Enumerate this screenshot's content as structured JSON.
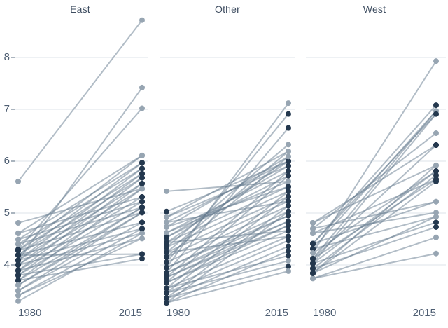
{
  "chart_data": {
    "type": "line",
    "subtype": "slopegraph",
    "title": "",
    "x_labels": [
      "1980",
      "2015"
    ],
    "y_ticks": [
      "8",
      "7",
      "6",
      "5",
      "4"
    ],
    "y_tick_values": [
      8,
      7,
      6,
      5,
      4
    ],
    "ylim": [
      3.2,
      8.9
    ],
    "grid": "horizontal-only",
    "legend": "none",
    "colors": {
      "dark_dot": "#24384e",
      "light_dot": "#97a5b2",
      "line": "#64798d",
      "gridline": "#dde3e8",
      "tick_dash": "#8593a3",
      "tick_text": "#4e5e72",
      "title_text": "#3e4d60"
    },
    "panels": [
      {
        "title": "East",
        "lines": [
          [
            5.61,
            8.72,
            "l",
            "l"
          ],
          [
            4.08,
            7.42,
            "d",
            "l"
          ],
          [
            4.3,
            7.02,
            "d",
            "l"
          ],
          [
            4.81,
            5.47,
            "l",
            "l"
          ],
          [
            4.61,
            6.11,
            "l",
            "l"
          ],
          [
            4.49,
            5.97,
            "l",
            "d"
          ],
          [
            4.4,
            5.86,
            "l",
            "d"
          ],
          [
            4.28,
            5.76,
            "d",
            "d"
          ],
          [
            4.19,
            5.68,
            "d",
            "d"
          ],
          [
            4.09,
            5.57,
            "d",
            "d"
          ],
          [
            4.0,
            5.47,
            "d",
            "l"
          ],
          [
            3.89,
            5.31,
            "d",
            "d"
          ],
          [
            3.8,
            5.22,
            "d",
            "d"
          ],
          [
            3.7,
            5.11,
            "d",
            "d"
          ],
          [
            3.61,
            5.01,
            "l",
            "d"
          ],
          [
            3.5,
            4.82,
            "l",
            "d"
          ],
          [
            3.41,
            4.7,
            "l",
            "d"
          ],
          [
            3.3,
            4.61,
            "l",
            "l"
          ],
          [
            4.61,
            5.31,
            "l",
            "d"
          ],
          [
            4.49,
            5.22,
            "l",
            "d"
          ],
          [
            4.4,
            5.11,
            "l",
            "d"
          ],
          [
            4.28,
            5.01,
            "d",
            "d"
          ],
          [
            4.19,
            4.82,
            "d",
            "d"
          ],
          [
            4.09,
            4.7,
            "d",
            "d"
          ],
          [
            4.0,
            4.61,
            "d",
            "l"
          ],
          [
            3.89,
            4.51,
            "d",
            "l"
          ],
          [
            3.8,
            4.21,
            "d",
            "d"
          ],
          [
            3.7,
            4.12,
            "d",
            "d"
          ],
          [
            4.28,
            6.11,
            "d",
            "l"
          ],
          [
            4.19,
            5.97,
            "d",
            "d"
          ],
          [
            4.09,
            5.86,
            "d",
            "d"
          ],
          [
            4.0,
            5.76,
            "d",
            "d"
          ],
          [
            3.89,
            5.68,
            "d",
            "d"
          ],
          [
            3.8,
            5.57,
            "d",
            "d"
          ],
          [
            3.7,
            5.47,
            "d",
            "l"
          ],
          [
            3.61,
            5.11,
            "l",
            "d"
          ],
          [
            3.5,
            5.01,
            "l",
            "d"
          ],
          [
            3.41,
            4.51,
            "l",
            "l"
          ],
          [
            4.19,
            4.21,
            "d",
            "d"
          ]
        ]
      },
      {
        "title": "Other",
        "lines": [
          [
            5.42,
            5.61,
            "l",
            "l"
          ],
          [
            5.03,
            6.0,
            "d",
            "d"
          ],
          [
            3.95,
            7.12,
            "d",
            "l"
          ],
          [
            4.05,
            6.91,
            "d",
            "d"
          ],
          [
            3.85,
            6.64,
            "d",
            "d"
          ],
          [
            4.34,
            6.32,
            "d",
            "l"
          ],
          [
            4.24,
            6.19,
            "d",
            "l"
          ],
          [
            4.15,
            6.09,
            "d",
            "l"
          ],
          [
            4.43,
            6.0,
            "d",
            "d"
          ],
          [
            4.53,
            5.91,
            "d",
            "d"
          ],
          [
            3.76,
            5.81,
            "d",
            "d"
          ],
          [
            3.66,
            5.72,
            "d",
            "d"
          ],
          [
            4.62,
            5.61,
            "l",
            "l"
          ],
          [
            4.73,
            5.51,
            "l",
            "d"
          ],
          [
            3.55,
            5.42,
            "d",
            "d"
          ],
          [
            3.46,
            5.32,
            "d",
            "d"
          ],
          [
            4.82,
            5.23,
            "l",
            "d"
          ],
          [
            3.36,
            5.14,
            "d",
            "d"
          ],
          [
            3.27,
            5.03,
            "d",
            "d"
          ],
          [
            3.95,
            4.95,
            "d",
            "d"
          ],
          [
            3.85,
            4.84,
            "d",
            "d"
          ],
          [
            3.76,
            4.76,
            "d",
            "d"
          ],
          [
            3.66,
            4.66,
            "d",
            "d"
          ],
          [
            3.55,
            4.55,
            "d",
            "d"
          ],
          [
            3.46,
            4.47,
            "d",
            "d"
          ],
          [
            3.36,
            4.36,
            "d",
            "d"
          ],
          [
            3.27,
            4.27,
            "d",
            "d"
          ],
          [
            3.55,
            4.18,
            "d",
            "d"
          ],
          [
            3.46,
            4.08,
            "d",
            "l"
          ],
          [
            3.36,
            3.97,
            "d",
            "d"
          ],
          [
            3.27,
            3.88,
            "d",
            "l"
          ],
          [
            4.92,
            5.91,
            "l",
            "d"
          ],
          [
            4.82,
            6.0,
            "l",
            "d"
          ],
          [
            4.73,
            6.09,
            "l",
            "l"
          ],
          [
            4.62,
            5.81,
            "l",
            "d"
          ],
          [
            4.53,
            5.72,
            "d",
            "d"
          ],
          [
            4.43,
            5.51,
            "d",
            "d"
          ],
          [
            4.34,
            5.42,
            "d",
            "d"
          ],
          [
            4.24,
            5.32,
            "d",
            "d"
          ],
          [
            4.15,
            5.23,
            "d",
            "d"
          ],
          [
            4.05,
            5.14,
            "d",
            "d"
          ],
          [
            3.95,
            5.03,
            "d",
            "d"
          ],
          [
            3.85,
            4.95,
            "d",
            "d"
          ],
          [
            3.76,
            4.84,
            "d",
            "d"
          ],
          [
            3.66,
            4.76,
            "d",
            "d"
          ],
          [
            4.43,
            4.66,
            "d",
            "d"
          ],
          [
            4.24,
            4.55,
            "d",
            "d"
          ],
          [
            4.92,
            6.19,
            "l",
            "l"
          ]
        ]
      },
      {
        "title": "West",
        "lines": [
          [
            4.23,
            7.93,
            "l",
            "l"
          ],
          [
            4.41,
            7.08,
            "d",
            "d"
          ],
          [
            4.31,
            6.97,
            "d",
            "l"
          ],
          [
            4.41,
            6.91,
            "d",
            "d"
          ],
          [
            4.7,
            6.54,
            "l",
            "l"
          ],
          [
            4.12,
            6.31,
            "d",
            "d"
          ],
          [
            4.81,
            5.92,
            "l",
            "l"
          ],
          [
            4.03,
            5.81,
            "d",
            "d"
          ],
          [
            3.93,
            5.73,
            "d",
            "d"
          ],
          [
            4.12,
            5.65,
            "d",
            "d"
          ],
          [
            3.84,
            5.61,
            "d",
            "d"
          ],
          [
            4.7,
            5.22,
            "l",
            "l"
          ],
          [
            4.61,
            5.01,
            "l",
            "l"
          ],
          [
            4.31,
            4.93,
            "d",
            "l"
          ],
          [
            4.03,
            4.82,
            "d",
            "d"
          ],
          [
            3.93,
            4.73,
            "d",
            "d"
          ],
          [
            3.74,
            4.53,
            "l",
            "l"
          ],
          [
            3.74,
            4.22,
            "l",
            "l"
          ],
          [
            4.12,
            6.97,
            "d",
            "l"
          ],
          [
            4.03,
            6.91,
            "d",
            "d"
          ],
          [
            3.84,
            5.92,
            "d",
            "l"
          ],
          [
            4.23,
            5.81,
            "l",
            "d"
          ],
          [
            4.41,
            5.22,
            "d",
            "l"
          ],
          [
            4.81,
            6.31,
            "l",
            "d"
          ],
          [
            3.84,
            4.93,
            "d",
            "l"
          ],
          [
            4.61,
            5.65,
            "l",
            "d"
          ]
        ]
      }
    ]
  }
}
